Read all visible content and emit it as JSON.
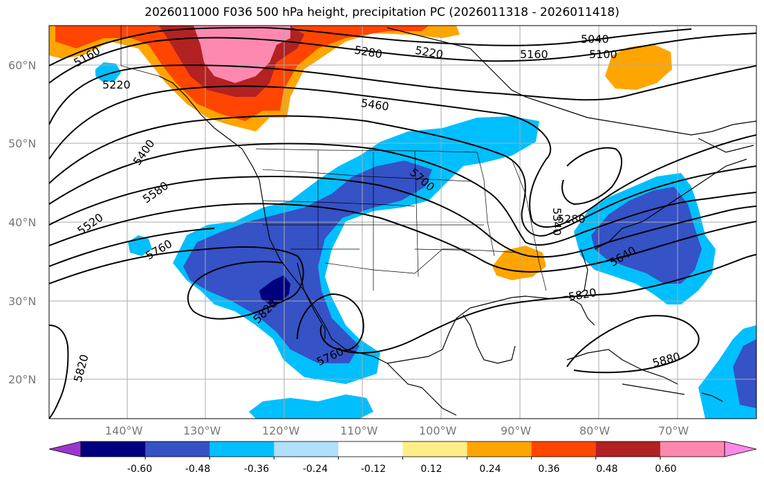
{
  "title": "2026011000 F036 500 hPa height, precipitation PC (2026011318 - 2026011418)",
  "lat_labels": [
    "60°N",
    "50°N",
    "40°N",
    "30°N",
    "20°N"
  ],
  "lon_labels": [
    "140°W",
    "130°W",
    "120°W",
    "110°W",
    "100°W",
    "90°W",
    "80°W",
    "70°W"
  ],
  "contour_labels": [
    "5160",
    "5220",
    "5280",
    "5220",
    "5160",
    "5040",
    "5100",
    "5460",
    "5400",
    "5580",
    "5520",
    "5700",
    "5340",
    "5280",
    "5760",
    "5640",
    "5820",
    "5820",
    "5760",
    "5880",
    "5820"
  ],
  "colorbar": {
    "ticks": [
      "-0.60",
      "-0.48",
      "-0.36",
      "-0.24",
      "-0.12",
      "0.12",
      "0.24",
      "0.36",
      "0.48",
      "0.60"
    ],
    "colors": [
      "#9c36cf",
      "#00007f",
      "#3552c6",
      "#00bfff",
      "#b0e0ff",
      "#ffffff",
      "#ffee88",
      "#ffa500",
      "#ff4500",
      "#b22222",
      "#ff88b0",
      "#ff88e6"
    ]
  }
}
